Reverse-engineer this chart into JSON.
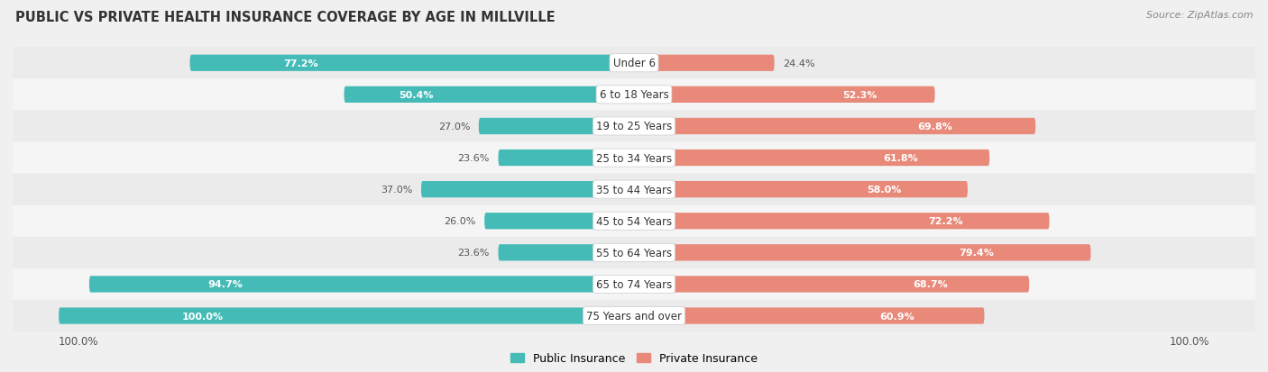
{
  "title": "PUBLIC VS PRIVATE HEALTH INSURANCE COVERAGE BY AGE IN MILLVILLE",
  "source": "Source: ZipAtlas.com",
  "categories": [
    "Under 6",
    "6 to 18 Years",
    "19 to 25 Years",
    "25 to 34 Years",
    "35 to 44 Years",
    "45 to 54 Years",
    "55 to 64 Years",
    "65 to 74 Years",
    "75 Years and over"
  ],
  "public_values": [
    77.2,
    50.4,
    27.0,
    23.6,
    37.0,
    26.0,
    23.6,
    94.7,
    100.0
  ],
  "private_values": [
    24.4,
    52.3,
    69.8,
    61.8,
    58.0,
    72.2,
    79.4,
    68.7,
    60.9
  ],
  "public_color": "#45bbb7",
  "private_color": "#e8897a",
  "bar_height": 0.52,
  "row_colors_odd": "#ebebeb",
  "row_colors_even": "#f5f5f5",
  "max_value": 100.0,
  "public_threshold": 38.0,
  "private_threshold": 38.0,
  "label_inside_color": "#ffffff",
  "label_outside_color": "#555555",
  "title_color": "#333333",
  "source_color": "#888888",
  "category_label_color": "#333333",
  "bottom_axis_label": "100.0%",
  "legend_labels": [
    "Public Insurance",
    "Private Insurance"
  ]
}
